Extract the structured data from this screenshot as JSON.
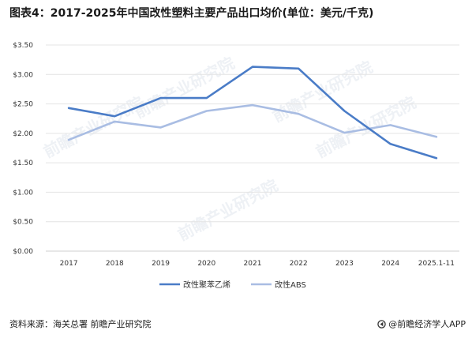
{
  "title": "图表4：2017-2025年中国改性塑料主要产品出口均价(单位：美元/千克)",
  "source": "资料来源：海关总署 前瞻产业研究院",
  "brand": "@前瞻经济学人APP",
  "watermark": "前瞻产业研究院",
  "chart_data": {
    "type": "line",
    "title": "图表4：2017-2025年中国改性塑料主要产品出口均价(单位：美元/千克)",
    "categories": [
      "2017",
      "2018",
      "2019",
      "2020",
      "2021",
      "2022",
      "2023",
      "2024",
      "2025.1-11"
    ],
    "y_tick_labels": [
      "$0.00",
      "$0.50",
      "$1.00",
      "$1.50",
      "$2.00",
      "$2.50",
      "$3.00",
      "$3.50"
    ],
    "ylim": [
      0,
      3.5
    ],
    "grid": true,
    "legend_position": "bottom",
    "series": [
      {
        "name": "改性聚苯乙烯",
        "color": "#4a7cc7",
        "values": [
          2.43,
          2.29,
          2.6,
          2.6,
          3.13,
          3.1,
          2.38,
          1.82,
          1.58
        ]
      },
      {
        "name": "改性ABS",
        "color": "#a9bde3",
        "values": [
          1.89,
          2.2,
          2.1,
          2.38,
          2.48,
          2.33,
          2.01,
          2.14,
          1.94
        ]
      }
    ]
  }
}
